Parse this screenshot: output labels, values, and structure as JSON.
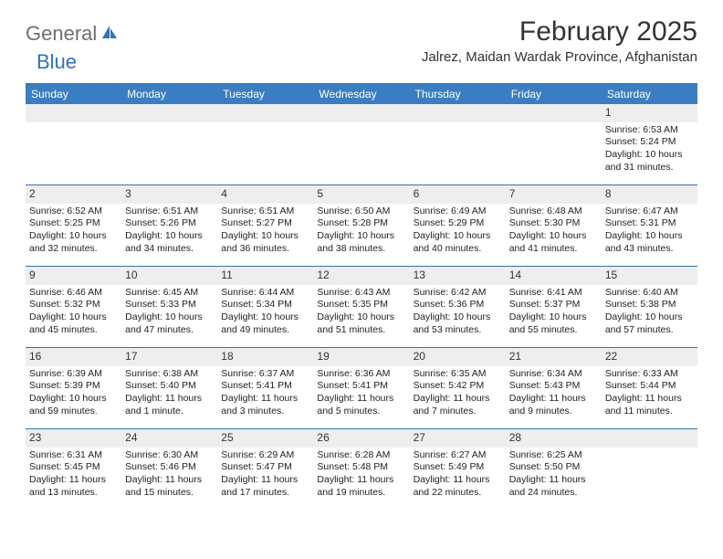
{
  "logo": {
    "text1": "General",
    "text2": "Blue"
  },
  "title": "February 2025",
  "location": "Jalrez, Maidan Wardak Province, Afghanistan",
  "colors": {
    "header_bg": "#3a7ec1",
    "header_text": "#ffffff",
    "divider": "#2f74b5",
    "daynum_bg": "#eeeeee",
    "body_text": "#222222",
    "logo_gray": "#6f6f6f",
    "logo_blue": "#2f74b5"
  },
  "day_names": [
    "Sunday",
    "Monday",
    "Tuesday",
    "Wednesday",
    "Thursday",
    "Friday",
    "Saturday"
  ],
  "weeks": [
    [
      {
        "n": "",
        "sr": "",
        "ss": "",
        "dl": ""
      },
      {
        "n": "",
        "sr": "",
        "ss": "",
        "dl": ""
      },
      {
        "n": "",
        "sr": "",
        "ss": "",
        "dl": ""
      },
      {
        "n": "",
        "sr": "",
        "ss": "",
        "dl": ""
      },
      {
        "n": "",
        "sr": "",
        "ss": "",
        "dl": ""
      },
      {
        "n": "",
        "sr": "",
        "ss": "",
        "dl": ""
      },
      {
        "n": "1",
        "sr": "Sunrise: 6:53 AM",
        "ss": "Sunset: 5:24 PM",
        "dl": "Daylight: 10 hours and 31 minutes."
      }
    ],
    [
      {
        "n": "2",
        "sr": "Sunrise: 6:52 AM",
        "ss": "Sunset: 5:25 PM",
        "dl": "Daylight: 10 hours and 32 minutes."
      },
      {
        "n": "3",
        "sr": "Sunrise: 6:51 AM",
        "ss": "Sunset: 5:26 PM",
        "dl": "Daylight: 10 hours and 34 minutes."
      },
      {
        "n": "4",
        "sr": "Sunrise: 6:51 AM",
        "ss": "Sunset: 5:27 PM",
        "dl": "Daylight: 10 hours and 36 minutes."
      },
      {
        "n": "5",
        "sr": "Sunrise: 6:50 AM",
        "ss": "Sunset: 5:28 PM",
        "dl": "Daylight: 10 hours and 38 minutes."
      },
      {
        "n": "6",
        "sr": "Sunrise: 6:49 AM",
        "ss": "Sunset: 5:29 PM",
        "dl": "Daylight: 10 hours and 40 minutes."
      },
      {
        "n": "7",
        "sr": "Sunrise: 6:48 AM",
        "ss": "Sunset: 5:30 PM",
        "dl": "Daylight: 10 hours and 41 minutes."
      },
      {
        "n": "8",
        "sr": "Sunrise: 6:47 AM",
        "ss": "Sunset: 5:31 PM",
        "dl": "Daylight: 10 hours and 43 minutes."
      }
    ],
    [
      {
        "n": "9",
        "sr": "Sunrise: 6:46 AM",
        "ss": "Sunset: 5:32 PM",
        "dl": "Daylight: 10 hours and 45 minutes."
      },
      {
        "n": "10",
        "sr": "Sunrise: 6:45 AM",
        "ss": "Sunset: 5:33 PM",
        "dl": "Daylight: 10 hours and 47 minutes."
      },
      {
        "n": "11",
        "sr": "Sunrise: 6:44 AM",
        "ss": "Sunset: 5:34 PM",
        "dl": "Daylight: 10 hours and 49 minutes."
      },
      {
        "n": "12",
        "sr": "Sunrise: 6:43 AM",
        "ss": "Sunset: 5:35 PM",
        "dl": "Daylight: 10 hours and 51 minutes."
      },
      {
        "n": "13",
        "sr": "Sunrise: 6:42 AM",
        "ss": "Sunset: 5:36 PM",
        "dl": "Daylight: 10 hours and 53 minutes."
      },
      {
        "n": "14",
        "sr": "Sunrise: 6:41 AM",
        "ss": "Sunset: 5:37 PM",
        "dl": "Daylight: 10 hours and 55 minutes."
      },
      {
        "n": "15",
        "sr": "Sunrise: 6:40 AM",
        "ss": "Sunset: 5:38 PM",
        "dl": "Daylight: 10 hours and 57 minutes."
      }
    ],
    [
      {
        "n": "16",
        "sr": "Sunrise: 6:39 AM",
        "ss": "Sunset: 5:39 PM",
        "dl": "Daylight: 10 hours and 59 minutes."
      },
      {
        "n": "17",
        "sr": "Sunrise: 6:38 AM",
        "ss": "Sunset: 5:40 PM",
        "dl": "Daylight: 11 hours and 1 minute."
      },
      {
        "n": "18",
        "sr": "Sunrise: 6:37 AM",
        "ss": "Sunset: 5:41 PM",
        "dl": "Daylight: 11 hours and 3 minutes."
      },
      {
        "n": "19",
        "sr": "Sunrise: 6:36 AM",
        "ss": "Sunset: 5:41 PM",
        "dl": "Daylight: 11 hours and 5 minutes."
      },
      {
        "n": "20",
        "sr": "Sunrise: 6:35 AM",
        "ss": "Sunset: 5:42 PM",
        "dl": "Daylight: 11 hours and 7 minutes."
      },
      {
        "n": "21",
        "sr": "Sunrise: 6:34 AM",
        "ss": "Sunset: 5:43 PM",
        "dl": "Daylight: 11 hours and 9 minutes."
      },
      {
        "n": "22",
        "sr": "Sunrise: 6:33 AM",
        "ss": "Sunset: 5:44 PM",
        "dl": "Daylight: 11 hours and 11 minutes."
      }
    ],
    [
      {
        "n": "23",
        "sr": "Sunrise: 6:31 AM",
        "ss": "Sunset: 5:45 PM",
        "dl": "Daylight: 11 hours and 13 minutes."
      },
      {
        "n": "24",
        "sr": "Sunrise: 6:30 AM",
        "ss": "Sunset: 5:46 PM",
        "dl": "Daylight: 11 hours and 15 minutes."
      },
      {
        "n": "25",
        "sr": "Sunrise: 6:29 AM",
        "ss": "Sunset: 5:47 PM",
        "dl": "Daylight: 11 hours and 17 minutes."
      },
      {
        "n": "26",
        "sr": "Sunrise: 6:28 AM",
        "ss": "Sunset: 5:48 PM",
        "dl": "Daylight: 11 hours and 19 minutes."
      },
      {
        "n": "27",
        "sr": "Sunrise: 6:27 AM",
        "ss": "Sunset: 5:49 PM",
        "dl": "Daylight: 11 hours and 22 minutes."
      },
      {
        "n": "28",
        "sr": "Sunrise: 6:25 AM",
        "ss": "Sunset: 5:50 PM",
        "dl": "Daylight: 11 hours and 24 minutes."
      },
      {
        "n": "",
        "sr": "",
        "ss": "",
        "dl": ""
      }
    ]
  ]
}
